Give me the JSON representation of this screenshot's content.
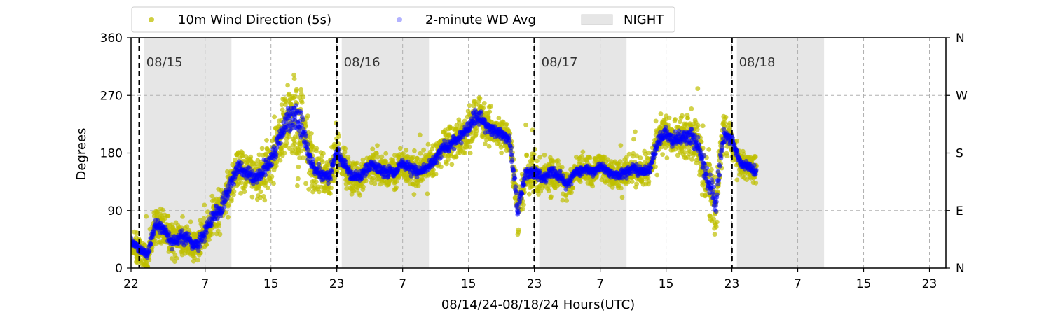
{
  "chart_data": {
    "type": "scatter",
    "xlabel": "08/14/24-08/18/24  Hours(UTC)",
    "ylabel": "Degrees",
    "ylim": [
      0,
      360
    ],
    "xlim_hours": [
      22,
      121
    ],
    "x_ticks": [
      {
        "h": 22,
        "label": "22"
      },
      {
        "h": 31,
        "label": "7"
      },
      {
        "h": 39,
        "label": "15"
      },
      {
        "h": 47,
        "label": "23"
      },
      {
        "h": 55,
        "label": "7"
      },
      {
        "h": 63,
        "label": "15"
      },
      {
        "h": 71,
        "label": "23"
      },
      {
        "h": 79,
        "label": "7"
      },
      {
        "h": 87,
        "label": "15"
      },
      {
        "h": 95,
        "label": "23"
      },
      {
        "h": 103,
        "label": "7"
      },
      {
        "h": 111,
        "label": "15"
      },
      {
        "h": 119,
        "label": "23"
      }
    ],
    "y_ticks": [
      {
        "v": 0,
        "label": "0"
      },
      {
        "v": 90,
        "label": "90"
      },
      {
        "v": 180,
        "label": "180"
      },
      {
        "v": 270,
        "label": "270"
      },
      {
        "v": 360,
        "label": "360"
      }
    ],
    "right_ticks": [
      {
        "v": 0,
        "label": "N"
      },
      {
        "v": 90,
        "label": "E"
      },
      {
        "v": 180,
        "label": "S"
      },
      {
        "v": 270,
        "label": "W"
      },
      {
        "v": 360,
        "label": "N"
      }
    ],
    "grid": true,
    "legend_position": "top",
    "legend": {
      "wind": "10m Wind Direction (5s)",
      "avg": "2-minute WD Avg",
      "night": "NIGHT"
    },
    "day_markers": [
      {
        "h": 23.0,
        "label": "08/15"
      },
      {
        "h": 47.0,
        "label": "08/16"
      },
      {
        "h": 71.0,
        "label": "08/17"
      },
      {
        "h": 95.0,
        "label": "08/18"
      }
    ],
    "night_spans": [
      [
        23.6,
        34.2
      ],
      [
        47.6,
        58.2
      ],
      [
        71.6,
        82.2
      ],
      [
        95.6,
        106.2
      ]
    ],
    "colors": {
      "wind": "#bfbf00",
      "avg": "#0000ff",
      "night": "#e6e6e6",
      "grid": "#b0b0b0"
    },
    "series": [
      {
        "name": "2-minute WD Avg",
        "x_hours": [
          22,
          23,
          24,
          25,
          26,
          27,
          28,
          29,
          30,
          31,
          32,
          33,
          34,
          35,
          36,
          37,
          38,
          39,
          40,
          41,
          42,
          43,
          44,
          45,
          46,
          47,
          48,
          49,
          50,
          51,
          52,
          53,
          54,
          55,
          56,
          57,
          58,
          59,
          60,
          61,
          62,
          63,
          64,
          65,
          66,
          67,
          68,
          69,
          70,
          71,
          72,
          73,
          74,
          75,
          76,
          77,
          78,
          79,
          80,
          81,
          82,
          83,
          84,
          85,
          86,
          87,
          88,
          89,
          90,
          91,
          92,
          93,
          94,
          95,
          96,
          97,
          98
        ],
        "y_deg": [
          40,
          30,
          20,
          70,
          60,
          40,
          50,
          45,
          35,
          55,
          80,
          95,
          130,
          160,
          150,
          140,
          150,
          170,
          200,
          230,
          240,
          210,
          160,
          150,
          140,
          180,
          160,
          140,
          145,
          160,
          155,
          150,
          150,
          165,
          155,
          150,
          160,
          170,
          190,
          195,
          205,
          215,
          240,
          225,
          215,
          210,
          200,
          90,
          150,
          150,
          140,
          150,
          145,
          130,
          150,
          155,
          150,
          160,
          150,
          145,
          150,
          155,
          150,
          155,
          200,
          210,
          200,
          205,
          210,
          190,
          140,
          100,
          210,
          200,
          165,
          160,
          150
        ]
      },
      {
        "name": "10m Wind Direction (5s)",
        "spread_deg": [
          30,
          30,
          30,
          40,
          40,
          40,
          40,
          40,
          40,
          40,
          45,
          45,
          50,
          50,
          45,
          45,
          50,
          55,
          60,
          80,
          120,
          100,
          60,
          50,
          45,
          45,
          40,
          40,
          35,
          35,
          35,
          35,
          35,
          35,
          35,
          35,
          35,
          35,
          40,
          40,
          40,
          45,
          50,
          45,
          40,
          40,
          40,
          60,
          45,
          45,
          35,
          35,
          35,
          35,
          30,
          30,
          30,
          30,
          30,
          30,
          30,
          30,
          35,
          35,
          45,
          45,
          45,
          45,
          50,
          60,
          80,
          80,
          45,
          40,
          30,
          30,
          30
        ]
      }
    ]
  }
}
